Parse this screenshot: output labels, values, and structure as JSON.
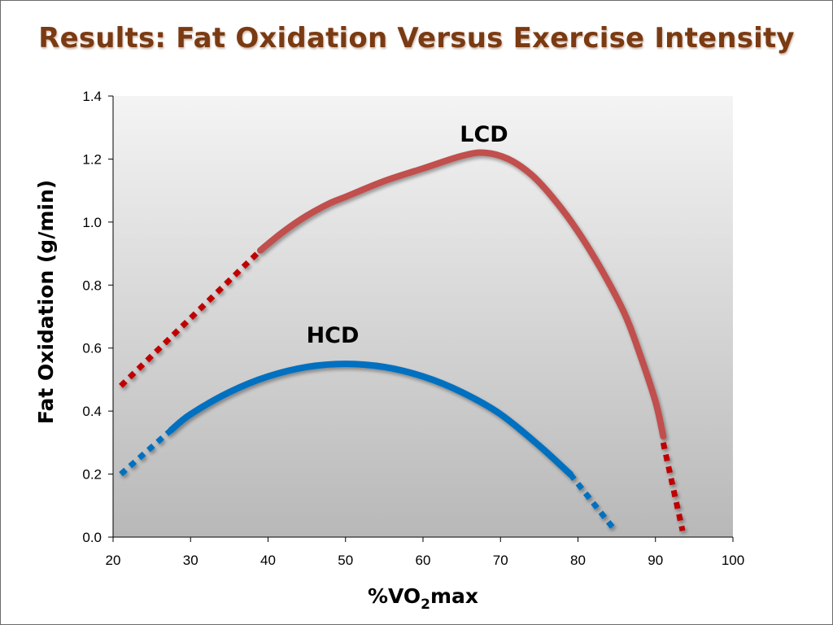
{
  "slide": {
    "title": "Results: Fat Oxidation Versus Exercise Intensity"
  },
  "chart_data": {
    "type": "line",
    "title": "",
    "xlabel": {
      "main": "%VO",
      "subscript": "2",
      "suffix": "max"
    },
    "ylabel": "Fat Oxidation (g/min)",
    "xlim": [
      20,
      100
    ],
    "ylim": [
      0,
      1.4
    ],
    "x_ticks": [
      20,
      30,
      40,
      50,
      60,
      70,
      80,
      90,
      100
    ],
    "y_ticks": [
      "0.0",
      "0.2",
      "0.4",
      "0.6",
      "0.8",
      "1.0",
      "1.2",
      "1.4"
    ],
    "grid": false,
    "plot_background": "gradient light-gray to gray",
    "series": [
      {
        "name": "LCD",
        "color": "#c0504d",
        "dotted_color": "#c00000",
        "extrapolated_low": [
          [
            21,
            0.48
          ],
          [
            39,
            0.91
          ]
        ],
        "measured": [
          [
            39,
            0.91
          ],
          [
            42,
            0.97
          ],
          [
            45,
            1.02
          ],
          [
            48,
            1.06
          ],
          [
            50,
            1.08
          ],
          [
            55,
            1.13
          ],
          [
            60,
            1.17
          ],
          [
            65,
            1.21
          ],
          [
            68,
            1.22
          ],
          [
            71,
            1.2
          ],
          [
            74,
            1.15
          ],
          [
            77,
            1.07
          ],
          [
            80,
            0.97
          ],
          [
            83,
            0.85
          ],
          [
            86,
            0.71
          ],
          [
            88,
            0.58
          ],
          [
            90,
            0.43
          ],
          [
            91,
            0.32
          ]
        ],
        "extrapolated_high": [
          [
            91,
            0.3
          ],
          [
            93.5,
            0.02
          ]
        ]
      },
      {
        "name": "HCD",
        "color": "#0070c0",
        "dotted_color": "#0070c0",
        "extrapolated_low": [
          [
            21,
            0.2
          ],
          [
            27.5,
            0.34
          ]
        ],
        "measured": [
          [
            27.5,
            0.34
          ],
          [
            30,
            0.39
          ],
          [
            35,
            0.46
          ],
          [
            40,
            0.51
          ],
          [
            45,
            0.54
          ],
          [
            50,
            0.55
          ],
          [
            55,
            0.54
          ],
          [
            60,
            0.51
          ],
          [
            65,
            0.46
          ],
          [
            70,
            0.39
          ],
          [
            75,
            0.29
          ],
          [
            79,
            0.2
          ]
        ],
        "extrapolated_high": [
          [
            79,
            0.2
          ],
          [
            84.5,
            0.03
          ]
        ]
      }
    ]
  }
}
